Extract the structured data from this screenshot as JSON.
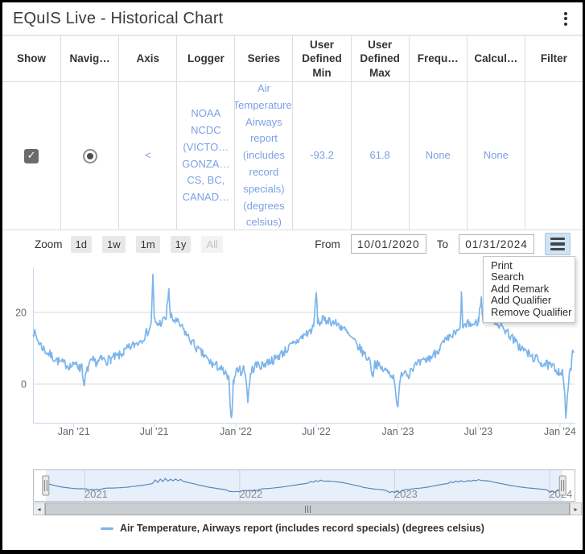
{
  "window": {
    "title": "EQuIS Live - Historical Chart"
  },
  "table": {
    "headers": [
      "Show",
      "Navig…",
      "Axis",
      "Logger",
      "Series",
      "User Defined Min",
      "User Defined Max",
      "Frequ…",
      "Calcul…",
      "Filter"
    ],
    "row": {
      "show_checked": true,
      "check_glyph": "✓",
      "navigator_selected": true,
      "axis": "<",
      "logger": "NOAA NCDC (VICTO… GONZA… CS, BC, CANAD…",
      "series": "Air Temperature, Airways report (includes record specials) (degrees celsius)",
      "user_defined_min": "-93.2",
      "user_defined_max": "61.8",
      "frequency": "None",
      "calculation": "None",
      "filter": ""
    }
  },
  "toolbar": {
    "zoom_label": "Zoom",
    "zoom_buttons": [
      "1d",
      "1w",
      "1m",
      "1y"
    ],
    "zoom_all": "All",
    "from_label": "From",
    "from_value": "10/01/2020",
    "to_label": "To",
    "to_value": "01/31/2024"
  },
  "menu": {
    "items": [
      "Print",
      "Search",
      "Add Remark",
      "Add Qualifier",
      "Remove Qualifier"
    ]
  },
  "scrollbar": {
    "left_arrow": "◂",
    "right_arrow": "▸"
  },
  "legend": {
    "label": "Air Temperature, Airways report (includes record specials) (degrees celsius)",
    "color": "#7cb5ec"
  },
  "chart_data": {
    "type": "line",
    "series_name": "Air Temperature, Airways report (includes record specials) (degrees celsius)",
    "color": "#7cb5ec",
    "x_unit": "days since 2020-10-01",
    "x_range_days": [
      0,
      1218
    ],
    "y_range": [
      -12,
      33
    ],
    "grid": true,
    "y_ticks": [
      {
        "value": 20,
        "label": "20"
      },
      {
        "value": 0,
        "label": "0"
      }
    ],
    "x_ticks": [
      {
        "day": 92,
        "label": "Jan '21"
      },
      {
        "day": 273,
        "label": "Jul '21"
      },
      {
        "day": 457,
        "label": "Jan '22"
      },
      {
        "day": 638,
        "label": "Jul '22"
      },
      {
        "day": 822,
        "label": "Jan '23"
      },
      {
        "day": 1003,
        "label": "Jul '23"
      },
      {
        "day": 1187,
        "label": "Jan '24"
      }
    ],
    "noise_amplitude": 1.3,
    "noise_seed": 7,
    "points_day_value": [
      [
        0,
        15
      ],
      [
        6,
        13.5
      ],
      [
        12,
        12
      ],
      [
        20,
        10.5
      ],
      [
        30,
        9
      ],
      [
        40,
        8
      ],
      [
        50,
        7
      ],
      [
        62,
        6
      ],
      [
        75,
        5.5
      ],
      [
        85,
        5
      ],
      [
        92,
        5
      ],
      [
        98,
        6.5
      ],
      [
        105,
        4
      ],
      [
        110,
        6
      ],
      [
        115,
        -1.5
      ],
      [
        118,
        2
      ],
      [
        125,
        5
      ],
      [
        135,
        6.5
      ],
      [
        145,
        6
      ],
      [
        155,
        7
      ],
      [
        165,
        6.5
      ],
      [
        175,
        7
      ],
      [
        185,
        7.5
      ],
      [
        195,
        8
      ],
      [
        205,
        9
      ],
      [
        215,
        10
      ],
      [
        228,
        11
      ],
      [
        240,
        12
      ],
      [
        252,
        13.5
      ],
      [
        260,
        15
      ],
      [
        266,
        16.5
      ],
      [
        270,
        31
      ],
      [
        273,
        18
      ],
      [
        278,
        16.5
      ],
      [
        285,
        17
      ],
      [
        292,
        17.5
      ],
      [
        300,
        18.5
      ],
      [
        306,
        27
      ],
      [
        309,
        19
      ],
      [
        315,
        18
      ],
      [
        322,
        17.5
      ],
      [
        330,
        16.5
      ],
      [
        340,
        15
      ],
      [
        350,
        13
      ],
      [
        360,
        11.5
      ],
      [
        372,
        9.5
      ],
      [
        385,
        8
      ],
      [
        395,
        6.5
      ],
      [
        405,
        5.5
      ],
      [
        415,
        5
      ],
      [
        425,
        4
      ],
      [
        435,
        2.5
      ],
      [
        441,
        1
      ],
      [
        447,
        -10
      ],
      [
        451,
        0
      ],
      [
        456,
        3
      ],
      [
        462,
        4.5
      ],
      [
        468,
        3.5
      ],
      [
        475,
        4.5
      ],
      [
        480,
        2
      ],
      [
        484,
        -5
      ],
      [
        488,
        1
      ],
      [
        493,
        4
      ],
      [
        500,
        5
      ],
      [
        508,
        5.5
      ],
      [
        516,
        5
      ],
      [
        525,
        6
      ],
      [
        535,
        6.5
      ],
      [
        545,
        7
      ],
      [
        555,
        8
      ],
      [
        565,
        9
      ],
      [
        575,
        10
      ],
      [
        585,
        11
      ],
      [
        595,
        12
      ],
      [
        605,
        13
      ],
      [
        615,
        14
      ],
      [
        625,
        15
      ],
      [
        632,
        15.5
      ],
      [
        638,
        26
      ],
      [
        641,
        18
      ],
      [
        646,
        17
      ],
      [
        652,
        18
      ],
      [
        658,
        17.5
      ],
      [
        665,
        18
      ],
      [
        672,
        17.5
      ],
      [
        680,
        17
      ],
      [
        688,
        16.5
      ],
      [
        695,
        16
      ],
      [
        703,
        15
      ],
      [
        712,
        13.5
      ],
      [
        722,
        12
      ],
      [
        732,
        10.5
      ],
      [
        742,
        9
      ],
      [
        752,
        7.5
      ],
      [
        760,
        6.5
      ],
      [
        765,
        2
      ],
      [
        769,
        6
      ],
      [
        775,
        5.5
      ],
      [
        782,
        4.5
      ],
      [
        790,
        4
      ],
      [
        798,
        3.5
      ],
      [
        806,
        3
      ],
      [
        814,
        1.5
      ],
      [
        822,
        -7.5
      ],
      [
        826,
        0
      ],
      [
        832,
        3.5
      ],
      [
        838,
        4
      ],
      [
        845,
        2.5
      ],
      [
        852,
        4.5
      ],
      [
        860,
        5
      ],
      [
        868,
        5.5
      ],
      [
        876,
        6
      ],
      [
        885,
        6.5
      ],
      [
        895,
        7.5
      ],
      [
        905,
        8.5
      ],
      [
        915,
        10
      ],
      [
        925,
        11.5
      ],
      [
        935,
        12.5
      ],
      [
        945,
        13.5
      ],
      [
        955,
        14.5
      ],
      [
        962,
        15
      ],
      [
        965,
        25
      ],
      [
        968,
        16.5
      ],
      [
        975,
        16
      ],
      [
        982,
        17
      ],
      [
        990,
        16.5
      ],
      [
        997,
        17
      ],
      [
        1003,
        17.5
      ],
      [
        1010,
        24
      ],
      [
        1013,
        18
      ],
      [
        1020,
        18
      ],
      [
        1028,
        19.5
      ],
      [
        1035,
        20
      ],
      [
        1040,
        17.5
      ],
      [
        1047,
        17
      ],
      [
        1055,
        16
      ],
      [
        1065,
        15
      ],
      [
        1075,
        13.5
      ],
      [
        1085,
        12
      ],
      [
        1095,
        10.5
      ],
      [
        1105,
        9.5
      ],
      [
        1115,
        8.5
      ],
      [
        1125,
        7.5
      ],
      [
        1135,
        7
      ],
      [
        1145,
        6
      ],
      [
        1155,
        5.5
      ],
      [
        1165,
        5
      ],
      [
        1175,
        4.5
      ],
      [
        1185,
        3.5
      ],
      [
        1192,
        3
      ],
      [
        1196,
        0
      ],
      [
        1200,
        -9
      ],
      [
        1204,
        -3
      ],
      [
        1208,
        2
      ],
      [
        1212,
        5
      ],
      [
        1215,
        8
      ],
      [
        1218,
        10
      ]
    ],
    "navigator": {
      "full_range_days": [
        -30,
        1248
      ],
      "selected_range_days": [
        0,
        1218
      ],
      "labels": [
        {
          "day": 92,
          "label": "2021"
        },
        {
          "day": 457,
          "label": "2022"
        },
        {
          "day": 822,
          "label": "2023"
        },
        {
          "day": 1187,
          "label": "2024"
        }
      ],
      "line_color": "#5b86c0",
      "mask_fill": "#e7f0fa"
    }
  }
}
